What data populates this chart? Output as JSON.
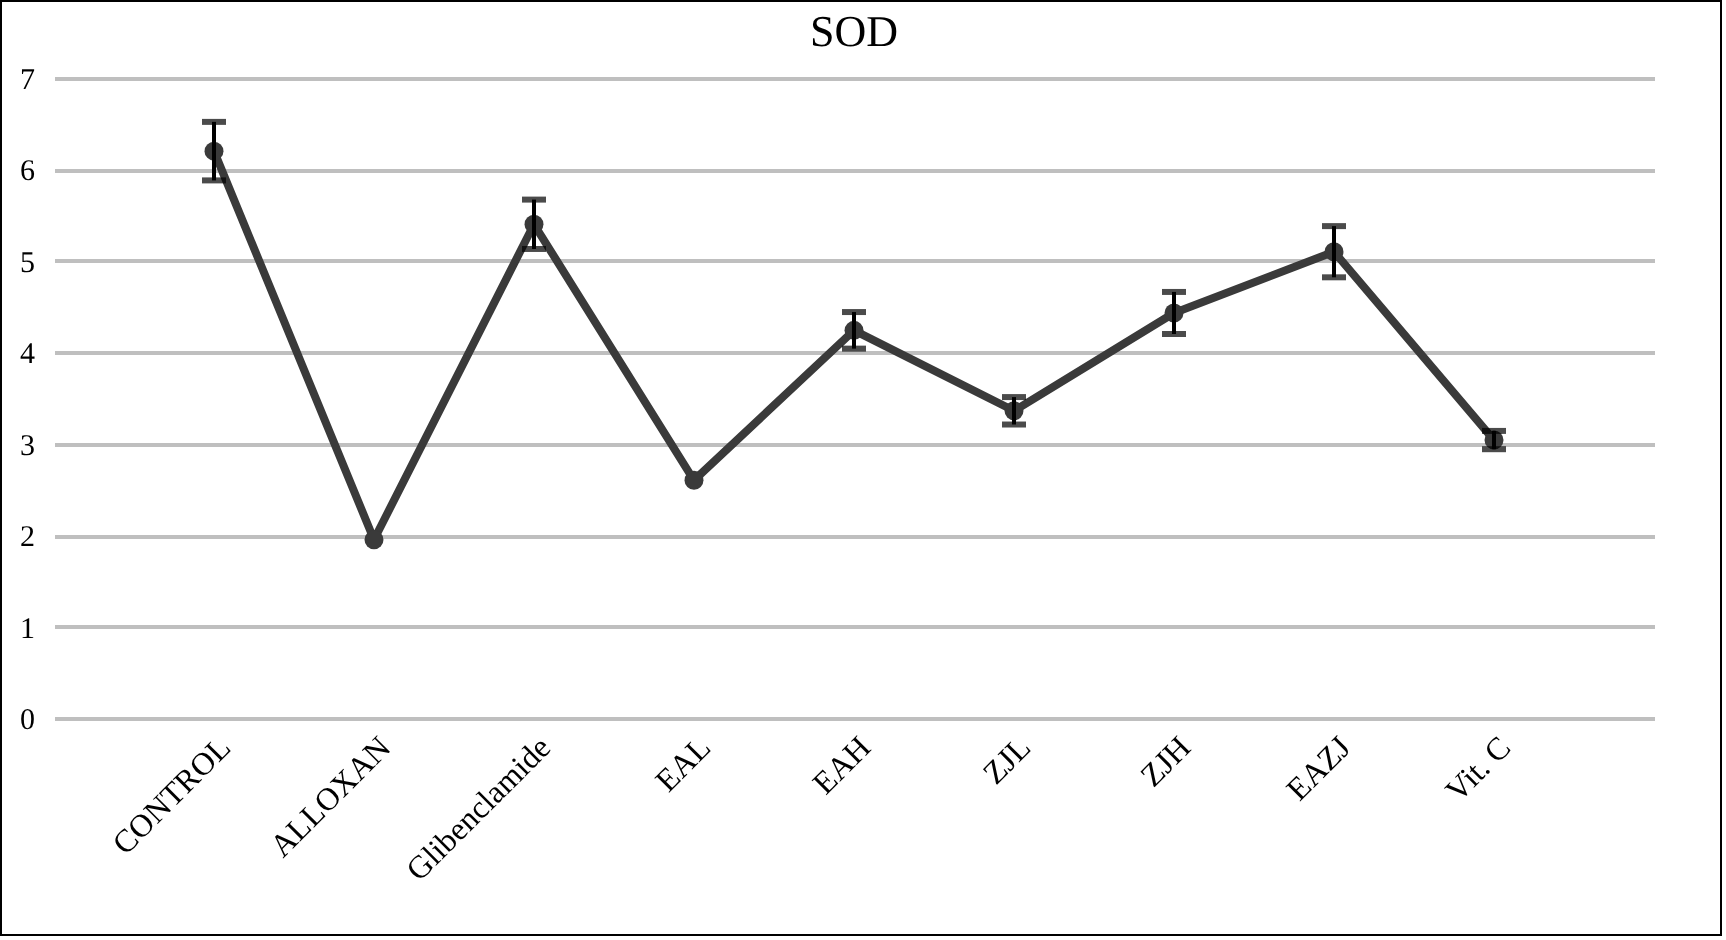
{
  "chart_data": {
    "type": "line",
    "title": "SOD",
    "categories": [
      "CONTROL",
      "ALLOXAN",
      "Glibenclamide",
      "EAL",
      "EAH",
      "ZJL",
      "ZJH",
      "EAZJ",
      "Vit. C"
    ],
    "series": [
      {
        "color": "#3a3a3a",
        "values": [
          6.2,
          1.95,
          5.4,
          2.6,
          4.24,
          3.36,
          4.43,
          5.1,
          3.04
        ],
        "errors": [
          0.32,
          null,
          0.27,
          null,
          0.2,
          0.15,
          0.23,
          0.28,
          0.1
        ]
      }
    ],
    "ylim": [
      0,
      7
    ],
    "yticks": [
      0,
      1,
      2,
      3,
      4,
      5,
      6,
      7
    ],
    "grid": "y",
    "marker": "circle",
    "line_style": "solid"
  }
}
